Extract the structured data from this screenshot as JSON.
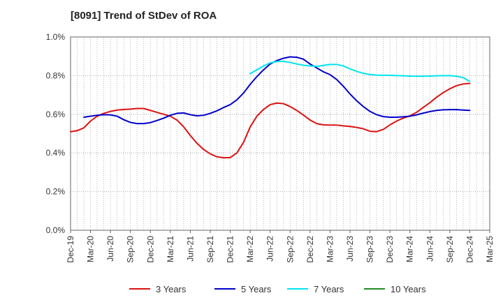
{
  "chart_data": {
    "type": "line",
    "title": "[8091]  Trend of StDev of ROA",
    "xlabel": "",
    "ylabel": "",
    "x_ticks": [
      "Dec-19",
      "Mar-20",
      "Jun-20",
      "Sep-20",
      "Dec-20",
      "Mar-21",
      "Jun-21",
      "Sep-21",
      "Dec-21",
      "Mar-22",
      "Jun-22",
      "Sep-22",
      "Dec-22",
      "Mar-23",
      "Jun-23",
      "Sep-23",
      "Dec-23",
      "Mar-24",
      "Jun-24",
      "Sep-24",
      "Dec-24",
      "Mar-25"
    ],
    "y_ticks": [
      "0.0%",
      "0.2%",
      "0.4%",
      "0.6%",
      "0.8%",
      "1.0%"
    ],
    "ylim": [
      0,
      1.0
    ],
    "y_unit": "%",
    "grid": true,
    "legend_position": "bottom",
    "series": [
      {
        "name": "3 Years",
        "color": "#dd1111",
        "points": [
          [
            "Dec-19",
            0.51
          ],
          [
            "Jan-20",
            0.515
          ],
          [
            "Feb-20",
            0.53
          ],
          [
            "Mar-20",
            0.565
          ],
          [
            "Apr-20",
            0.59
          ],
          [
            "May-20",
            0.605
          ],
          [
            "Jun-20",
            0.615
          ],
          [
            "Jul-20",
            0.622
          ],
          [
            "Aug-20",
            0.625
          ],
          [
            "Sep-20",
            0.627
          ],
          [
            "Oct-20",
            0.63
          ],
          [
            "Nov-20",
            0.63
          ],
          [
            "Dec-20",
            0.62
          ],
          [
            "Jan-21",
            0.61
          ],
          [
            "Feb-21",
            0.6
          ],
          [
            "Mar-21",
            0.59
          ],
          [
            "Apr-21",
            0.57
          ],
          [
            "May-21",
            0.535
          ],
          [
            "Jun-21",
            0.49
          ],
          [
            "Jul-21",
            0.45
          ],
          [
            "Aug-21",
            0.418
          ],
          [
            "Sep-21",
            0.395
          ],
          [
            "Oct-21",
            0.38
          ],
          [
            "Nov-21",
            0.375
          ],
          [
            "Dec-21",
            0.376
          ],
          [
            "Jan-22",
            0.4
          ],
          [
            "Feb-22",
            0.455
          ],
          [
            "Mar-22",
            0.535
          ],
          [
            "Apr-22",
            0.59
          ],
          [
            "May-22",
            0.625
          ],
          [
            "Jun-22",
            0.65
          ],
          [
            "Jul-22",
            0.658
          ],
          [
            "Aug-22",
            0.655
          ],
          [
            "Sep-22",
            0.64
          ],
          [
            "Oct-22",
            0.62
          ],
          [
            "Nov-22",
            0.596
          ],
          [
            "Dec-22",
            0.57
          ],
          [
            "Jan-23",
            0.552
          ],
          [
            "Feb-23",
            0.545
          ],
          [
            "Mar-23",
            0.544
          ],
          [
            "Apr-23",
            0.544
          ],
          [
            "May-23",
            0.54
          ],
          [
            "Jun-23",
            0.537
          ],
          [
            "Jul-23",
            0.532
          ],
          [
            "Aug-23",
            0.525
          ],
          [
            "Sep-23",
            0.512
          ],
          [
            "Oct-23",
            0.51
          ],
          [
            "Nov-23",
            0.522
          ],
          [
            "Dec-23",
            0.545
          ],
          [
            "Jan-24",
            0.565
          ],
          [
            "Feb-24",
            0.58
          ],
          [
            "Mar-24",
            0.592
          ],
          [
            "Apr-24",
            0.61
          ],
          [
            "May-24",
            0.635
          ],
          [
            "Jun-24",
            0.66
          ],
          [
            "Jul-24",
            0.688
          ],
          [
            "Aug-24",
            0.712
          ],
          [
            "Sep-24",
            0.732
          ],
          [
            "Oct-24",
            0.748
          ],
          [
            "Nov-24",
            0.757
          ],
          [
            "Dec-24",
            0.76
          ]
        ]
      },
      {
        "name": "5 Years",
        "color": "#0000cc",
        "points": [
          [
            "Feb-20",
            0.585
          ],
          [
            "Mar-20",
            0.59
          ],
          [
            "Apr-20",
            0.595
          ],
          [
            "May-20",
            0.598
          ],
          [
            "Jun-20",
            0.597
          ],
          [
            "Jul-20",
            0.59
          ],
          [
            "Aug-20",
            0.572
          ],
          [
            "Sep-20",
            0.558
          ],
          [
            "Oct-20",
            0.552
          ],
          [
            "Nov-20",
            0.552
          ],
          [
            "Dec-20",
            0.557
          ],
          [
            "Jan-21",
            0.568
          ],
          [
            "Feb-21",
            0.58
          ],
          [
            "Mar-21",
            0.595
          ],
          [
            "Apr-21",
            0.605
          ],
          [
            "May-21",
            0.607
          ],
          [
            "Jun-21",
            0.598
          ],
          [
            "Jul-21",
            0.592
          ],
          [
            "Aug-21",
            0.595
          ],
          [
            "Sep-21",
            0.605
          ],
          [
            "Oct-21",
            0.618
          ],
          [
            "Nov-21",
            0.635
          ],
          [
            "Dec-21",
            0.65
          ],
          [
            "Jan-22",
            0.675
          ],
          [
            "Feb-22",
            0.71
          ],
          [
            "Mar-22",
            0.755
          ],
          [
            "Apr-22",
            0.795
          ],
          [
            "May-22",
            0.83
          ],
          [
            "Jun-22",
            0.86
          ],
          [
            "Jul-22",
            0.878
          ],
          [
            "Aug-22",
            0.89
          ],
          [
            "Sep-22",
            0.897
          ],
          [
            "Oct-22",
            0.895
          ],
          [
            "Nov-22",
            0.885
          ],
          [
            "Dec-22",
            0.86
          ],
          [
            "Jan-23",
            0.84
          ],
          [
            "Feb-23",
            0.82
          ],
          [
            "Mar-23",
            0.805
          ],
          [
            "Apr-23",
            0.78
          ],
          [
            "May-23",
            0.745
          ],
          [
            "Jun-23",
            0.705
          ],
          [
            "Jul-23",
            0.67
          ],
          [
            "Aug-23",
            0.64
          ],
          [
            "Sep-23",
            0.615
          ],
          [
            "Oct-23",
            0.598
          ],
          [
            "Nov-23",
            0.588
          ],
          [
            "Dec-23",
            0.585
          ],
          [
            "Jan-24",
            0.585
          ],
          [
            "Feb-24",
            0.587
          ],
          [
            "Mar-24",
            0.59
          ],
          [
            "Apr-24",
            0.597
          ],
          [
            "May-24",
            0.606
          ],
          [
            "Jun-24",
            0.614
          ],
          [
            "Jul-24",
            0.62
          ],
          [
            "Aug-24",
            0.623
          ],
          [
            "Sep-24",
            0.624
          ],
          [
            "Oct-24",
            0.624
          ],
          [
            "Nov-24",
            0.622
          ],
          [
            "Dec-24",
            0.62
          ]
        ]
      },
      {
        "name": "7 Years",
        "color": "#00e5ee",
        "points": [
          [
            "Mar-22",
            0.81
          ],
          [
            "Apr-22",
            0.83
          ],
          [
            "May-22",
            0.85
          ],
          [
            "Jun-22",
            0.866
          ],
          [
            "Jul-22",
            0.873
          ],
          [
            "Aug-22",
            0.874
          ],
          [
            "Sep-22",
            0.868
          ],
          [
            "Oct-22",
            0.86
          ],
          [
            "Nov-22",
            0.854
          ],
          [
            "Dec-22",
            0.85
          ],
          [
            "Jan-23",
            0.848
          ],
          [
            "Feb-23",
            0.853
          ],
          [
            "Mar-23",
            0.858
          ],
          [
            "Apr-23",
            0.858
          ],
          [
            "May-23",
            0.85
          ],
          [
            "Jun-23",
            0.835
          ],
          [
            "Jul-23",
            0.822
          ],
          [
            "Aug-23",
            0.812
          ],
          [
            "Sep-23",
            0.806
          ],
          [
            "Oct-23",
            0.803
          ],
          [
            "Nov-23",
            0.802
          ],
          [
            "Dec-23",
            0.802
          ],
          [
            "Jan-24",
            0.8
          ],
          [
            "Feb-24",
            0.799
          ],
          [
            "Mar-24",
            0.798
          ],
          [
            "Apr-24",
            0.797
          ],
          [
            "May-24",
            0.797
          ],
          [
            "Jun-24",
            0.798
          ],
          [
            "Jul-24",
            0.799
          ],
          [
            "Aug-24",
            0.8
          ],
          [
            "Sep-24",
            0.8
          ],
          [
            "Oct-24",
            0.797
          ],
          [
            "Nov-24",
            0.79
          ],
          [
            "Dec-24",
            0.77
          ]
        ]
      },
      {
        "name": "10 Years",
        "color": "#228b22",
        "points": []
      }
    ]
  }
}
